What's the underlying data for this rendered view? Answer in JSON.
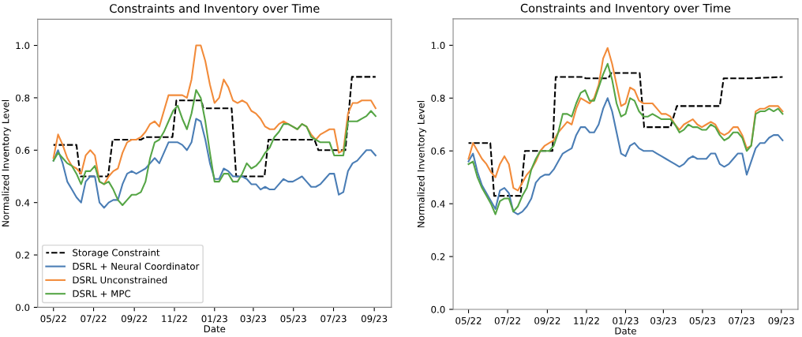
{
  "chart_data": [
    {
      "type": "line",
      "title": "Constraints and Inventory over Time",
      "xlabel": "Date",
      "ylabel": "Normalized Inventory Level",
      "legend": "bottom left",
      "grid": false,
      "xlim": [
        "2022-04-07",
        "2023-09-27"
      ],
      "xticks": [
        {
          "value": "2022-05-01",
          "label": "05/22"
        },
        {
          "value": "2022-07-01",
          "label": "07/22"
        },
        {
          "value": "2022-09-01",
          "label": "09/22"
        },
        {
          "value": "2022-11-01",
          "label": "11/22"
        },
        {
          "value": "2023-01-01",
          "label": "01/23"
        },
        {
          "value": "2023-03-01",
          "label": "03/23"
        },
        {
          "value": "2023-05-01",
          "label": "05/23"
        },
        {
          "value": "2023-07-01",
          "label": "07/23"
        },
        {
          "value": "2023-09-01",
          "label": "09/23"
        }
      ],
      "ylim": [
        0,
        1.1
      ],
      "yticks": [
        {
          "value": 0,
          "label": "0.0"
        },
        {
          "value": 0.2,
          "label": "0.2"
        },
        {
          "value": 0.4,
          "label": "0.4"
        },
        {
          "value": 0.6,
          "label": "0.6"
        },
        {
          "value": 0.8,
          "label": "0.8"
        },
        {
          "value": 1.0,
          "label": "1.0"
        }
      ],
      "x": [
        "2022-05-01",
        "2022-05-08",
        "2022-05-15",
        "2022-05-22",
        "2022-05-29",
        "2022-06-05",
        "2022-06-12",
        "2022-06-19",
        "2022-06-26",
        "2022-07-03",
        "2022-07-10",
        "2022-07-17",
        "2022-07-24",
        "2022-07-31",
        "2022-08-07",
        "2022-08-14",
        "2022-08-21",
        "2022-08-28",
        "2022-09-04",
        "2022-09-11",
        "2022-09-18",
        "2022-09-25",
        "2022-10-02",
        "2022-10-09",
        "2022-10-16",
        "2022-10-23",
        "2022-10-30",
        "2022-11-06",
        "2022-11-13",
        "2022-11-20",
        "2022-11-27",
        "2022-12-04",
        "2022-12-11",
        "2022-12-18",
        "2022-12-25",
        "2023-01-01",
        "2023-01-08",
        "2023-01-15",
        "2023-01-22",
        "2023-01-29",
        "2023-02-05",
        "2023-02-12",
        "2023-02-19",
        "2023-02-26",
        "2023-03-05",
        "2023-03-12",
        "2023-03-19",
        "2023-03-26",
        "2023-04-02",
        "2023-04-09",
        "2023-04-16",
        "2023-04-23",
        "2023-04-30",
        "2023-05-07",
        "2023-05-14",
        "2023-05-21",
        "2023-05-28",
        "2023-06-04",
        "2023-06-11",
        "2023-06-18",
        "2023-06-25",
        "2023-07-02",
        "2023-07-09",
        "2023-07-16",
        "2023-07-23",
        "2023-07-30",
        "2023-08-06",
        "2023-08-13",
        "2023-08-20",
        "2023-08-27",
        "2023-09-03"
      ],
      "series": [
        {
          "name": "Storage Constraint",
          "color": "#000000",
          "line_style": "dashed",
          "x": [
            "2022-05-01",
            "2022-06-05",
            "2022-06-11",
            "2022-07-23",
            "2022-07-30",
            "2022-09-11",
            "2022-09-18",
            "2022-10-29",
            "2022-11-04",
            "2022-12-12",
            "2022-12-15",
            "2023-01-27",
            "2023-02-03",
            "2023-03-18",
            "2023-03-24",
            "2023-06-02",
            "2023-06-08",
            "2023-07-19",
            "2023-07-29",
            "2023-09-03"
          ],
          "values": [
            0.62,
            0.62,
            0.5,
            0.5,
            0.64,
            0.64,
            0.65,
            0.65,
            0.79,
            0.79,
            0.76,
            0.76,
            0.5,
            0.5,
            0.64,
            0.64,
            0.6,
            0.6,
            0.88,
            0.88
          ]
        },
        {
          "name": "DSRL + Neural Coordinator",
          "color": "#4a7db5",
          "line_style": "solid",
          "values": [
            0.56,
            0.6,
            0.55,
            0.48,
            0.45,
            0.42,
            0.4,
            0.48,
            0.5,
            0.5,
            0.4,
            0.38,
            0.4,
            0.41,
            0.41,
            0.47,
            0.51,
            0.52,
            0.51,
            0.52,
            0.53,
            0.55,
            0.57,
            0.55,
            0.59,
            0.63,
            0.63,
            0.63,
            0.62,
            0.6,
            0.63,
            0.72,
            0.71,
            0.64,
            0.55,
            0.49,
            0.49,
            0.53,
            0.52,
            0.5,
            0.5,
            0.5,
            0.49,
            0.47,
            0.47,
            0.45,
            0.46,
            0.45,
            0.45,
            0.47,
            0.49,
            0.48,
            0.48,
            0.49,
            0.5,
            0.48,
            0.46,
            0.46,
            0.47,
            0.49,
            0.51,
            0.51,
            0.43,
            0.44,
            0.52,
            0.55,
            0.56,
            0.58,
            0.6,
            0.6,
            0.58
          ]
        },
        {
          "name": "DSRL Unconstrained",
          "color": "#f28b3a",
          "line_style": "solid",
          "values": [
            0.57,
            0.66,
            0.62,
            0.57,
            0.54,
            0.53,
            0.51,
            0.58,
            0.6,
            0.58,
            0.48,
            0.47,
            0.5,
            0.52,
            0.53,
            0.59,
            0.63,
            0.64,
            0.64,
            0.65,
            0.67,
            0.7,
            0.71,
            0.69,
            0.75,
            0.81,
            0.81,
            0.81,
            0.81,
            0.8,
            0.87,
            1.0,
            1.0,
            0.94,
            0.85,
            0.78,
            0.8,
            0.87,
            0.84,
            0.79,
            0.78,
            0.79,
            0.78,
            0.75,
            0.74,
            0.72,
            0.69,
            0.68,
            0.68,
            0.7,
            0.71,
            0.7,
            0.69,
            0.68,
            0.7,
            0.69,
            0.66,
            0.64,
            0.66,
            0.67,
            0.68,
            0.68,
            0.59,
            0.6,
            0.74,
            0.78,
            0.78,
            0.79,
            0.79,
            0.79,
            0.76
          ]
        },
        {
          "name": "DSRL + MPC",
          "color": "#55a545",
          "line_style": "solid",
          "values": [
            0.56,
            0.59,
            0.57,
            0.55,
            0.54,
            0.51,
            0.47,
            0.52,
            0.52,
            0.54,
            0.48,
            0.47,
            0.48,
            0.45,
            0.41,
            0.39,
            0.41,
            0.43,
            0.43,
            0.44,
            0.48,
            0.57,
            0.63,
            0.64,
            0.67,
            0.71,
            0.75,
            0.77,
            0.72,
            0.68,
            0.74,
            0.83,
            0.8,
            0.71,
            0.59,
            0.48,
            0.48,
            0.51,
            0.51,
            0.48,
            0.48,
            0.51,
            0.55,
            0.53,
            0.54,
            0.56,
            0.59,
            0.61,
            0.65,
            0.67,
            0.7,
            0.7,
            0.69,
            0.68,
            0.7,
            0.69,
            0.65,
            0.64,
            0.63,
            0.63,
            0.63,
            0.58,
            0.58,
            0.58,
            0.71,
            0.71,
            0.71,
            0.72,
            0.73,
            0.75,
            0.73
          ]
        }
      ]
    },
    {
      "type": "line",
      "title": "Constraints and Inventory over Time",
      "xlabel": "Date",
      "ylabel": "Normalized Inventory Level",
      "legend": false,
      "grid": false,
      "xlim": [
        "2022-04-07",
        "2023-09-27"
      ],
      "xticks": [
        {
          "value": "2022-05-01",
          "label": "05/22"
        },
        {
          "value": "2022-07-01",
          "label": "07/22"
        },
        {
          "value": "2022-09-01",
          "label": "09/22"
        },
        {
          "value": "2022-11-01",
          "label": "11/22"
        },
        {
          "value": "2023-01-01",
          "label": "01/23"
        },
        {
          "value": "2023-03-01",
          "label": "03/23"
        },
        {
          "value": "2023-05-01",
          "label": "05/23"
        },
        {
          "value": "2023-07-01",
          "label": "07/23"
        },
        {
          "value": "2023-09-01",
          "label": "09/23"
        }
      ],
      "ylim": [
        0,
        1.1
      ],
      "yticks": [
        {
          "value": 0,
          "label": "0.0"
        },
        {
          "value": 0.2,
          "label": "0.2"
        },
        {
          "value": 0.4,
          "label": "0.4"
        },
        {
          "value": 0.6,
          "label": "0.6"
        },
        {
          "value": 0.8,
          "label": "0.8"
        },
        {
          "value": 1.0,
          "label": "1.0"
        }
      ],
      "x": [
        "2022-05-01",
        "2022-05-08",
        "2022-05-15",
        "2022-05-22",
        "2022-05-29",
        "2022-06-05",
        "2022-06-12",
        "2022-06-19",
        "2022-06-26",
        "2022-07-03",
        "2022-07-10",
        "2022-07-17",
        "2022-07-24",
        "2022-07-31",
        "2022-08-07",
        "2022-08-14",
        "2022-08-21",
        "2022-08-28",
        "2022-09-04",
        "2022-09-11",
        "2022-09-18",
        "2022-09-25",
        "2022-10-02",
        "2022-10-09",
        "2022-10-16",
        "2022-10-23",
        "2022-10-30",
        "2022-11-06",
        "2022-11-13",
        "2022-11-20",
        "2022-11-27",
        "2022-12-04",
        "2022-12-11",
        "2022-12-18",
        "2022-12-25",
        "2023-01-01",
        "2023-01-08",
        "2023-01-15",
        "2023-01-22",
        "2023-01-29",
        "2023-02-05",
        "2023-02-12",
        "2023-02-19",
        "2023-02-26",
        "2023-03-05",
        "2023-03-12",
        "2023-03-19",
        "2023-03-26",
        "2023-04-02",
        "2023-04-09",
        "2023-04-16",
        "2023-04-23",
        "2023-04-30",
        "2023-05-07",
        "2023-05-14",
        "2023-05-21",
        "2023-05-28",
        "2023-06-04",
        "2023-06-11",
        "2023-06-18",
        "2023-06-25",
        "2023-07-02",
        "2023-07-09",
        "2023-07-16",
        "2023-07-23",
        "2023-07-30",
        "2023-08-06",
        "2023-08-13",
        "2023-08-20",
        "2023-08-27",
        "2023-09-03"
      ],
      "series": [
        {
          "color": "#000000",
          "line_style": "dashed",
          "x": [
            "2022-05-01",
            "2022-06-04",
            "2022-06-10",
            "2022-07-21",
            "2022-07-28",
            "2022-09-09",
            "2022-09-14",
            "2022-10-26",
            "2022-10-31",
            "2022-12-05",
            "2022-12-10",
            "2023-01-23",
            "2023-01-30",
            "2023-03-12",
            "2023-03-22",
            "2023-05-28",
            "2023-06-03",
            "2023-07-15",
            "2023-09-03"
          ],
          "values": [
            0.63,
            0.63,
            0.43,
            0.43,
            0.6,
            0.6,
            0.88,
            0.88,
            0.875,
            0.875,
            0.895,
            0.895,
            0.69,
            0.69,
            0.77,
            0.77,
            0.875,
            0.875,
            0.88
          ]
        },
        {
          "color": "#4a7db5",
          "line_style": "solid",
          "values": [
            0.56,
            0.59,
            0.52,
            0.47,
            0.44,
            0.41,
            0.38,
            0.45,
            0.46,
            0.44,
            0.37,
            0.36,
            0.37,
            0.39,
            0.42,
            0.48,
            0.5,
            0.51,
            0.51,
            0.53,
            0.56,
            0.59,
            0.6,
            0.61,
            0.66,
            0.69,
            0.69,
            0.67,
            0.67,
            0.7,
            0.76,
            0.8,
            0.75,
            0.67,
            0.59,
            0.58,
            0.62,
            0.63,
            0.61,
            0.6,
            0.6,
            0.6,
            0.59,
            0.58,
            0.57,
            0.56,
            0.55,
            0.54,
            0.55,
            0.57,
            0.58,
            0.57,
            0.57,
            0.57,
            0.59,
            0.59,
            0.55,
            0.54,
            0.55,
            0.57,
            0.59,
            0.59,
            0.51,
            0.56,
            0.61,
            0.63,
            0.63,
            0.65,
            0.66,
            0.66,
            0.64
          ]
        },
        {
          "color": "#f28b3a",
          "line_style": "solid",
          "values": [
            0.57,
            0.63,
            0.6,
            0.57,
            0.55,
            0.52,
            0.5,
            0.55,
            0.58,
            0.55,
            0.46,
            0.45,
            0.48,
            0.51,
            0.53,
            0.56,
            0.6,
            0.62,
            0.63,
            0.64,
            0.67,
            0.69,
            0.71,
            0.7,
            0.76,
            0.8,
            0.79,
            0.78,
            0.8,
            0.85,
            0.95,
            0.99,
            0.93,
            0.85,
            0.77,
            0.78,
            0.84,
            0.83,
            0.79,
            0.78,
            0.78,
            0.78,
            0.76,
            0.74,
            0.74,
            0.73,
            0.7,
            0.68,
            0.7,
            0.71,
            0.72,
            0.7,
            0.69,
            0.7,
            0.71,
            0.7,
            0.67,
            0.66,
            0.67,
            0.69,
            0.69,
            0.66,
            0.61,
            0.62,
            0.75,
            0.76,
            0.76,
            0.77,
            0.77,
            0.77,
            0.75
          ]
        },
        {
          "color": "#55a545",
          "line_style": "solid",
          "values": [
            0.55,
            0.56,
            0.5,
            0.46,
            0.43,
            0.4,
            0.36,
            0.41,
            0.42,
            0.42,
            0.37,
            0.39,
            0.43,
            0.46,
            0.53,
            0.57,
            0.6,
            0.6,
            0.6,
            0.62,
            0.67,
            0.74,
            0.74,
            0.73,
            0.78,
            0.82,
            0.83,
            0.79,
            0.79,
            0.84,
            0.89,
            0.93,
            0.87,
            0.78,
            0.73,
            0.74,
            0.8,
            0.79,
            0.75,
            0.73,
            0.73,
            0.74,
            0.73,
            0.72,
            0.72,
            0.72,
            0.7,
            0.67,
            0.68,
            0.7,
            0.69,
            0.69,
            0.68,
            0.68,
            0.7,
            0.69,
            0.66,
            0.64,
            0.65,
            0.67,
            0.67,
            0.65,
            0.6,
            0.62,
            0.74,
            0.75,
            0.75,
            0.76,
            0.75,
            0.76,
            0.74
          ]
        }
      ]
    }
  ]
}
